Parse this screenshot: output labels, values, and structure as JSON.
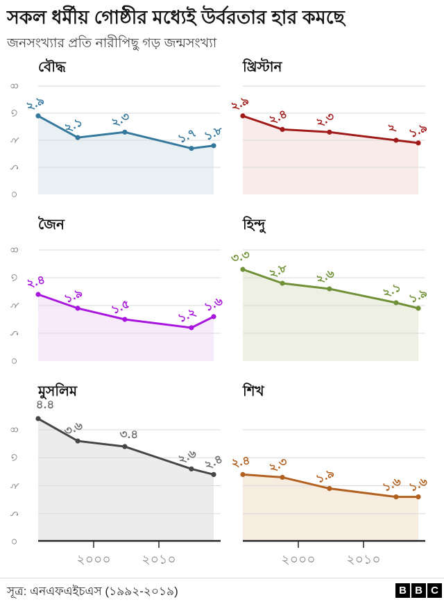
{
  "header": {
    "title": "সকল ধর্মীয় গোষ্ঠীর মধ্যেই উর্বরতার হার কমছে",
    "subtitle": "জনসংখ্যার প্রতি নারীপিছু গড় জন্মসংখ্যা"
  },
  "footer": {
    "source": "সূত্র: এনএফএইচএস (১৯৯২-২০১৯)",
    "bbc_letters": [
      "B",
      "B",
      "C"
    ]
  },
  "axes": {
    "ylim": [
      0,
      5
    ],
    "grid_values": [
      1,
      2,
      3,
      4
    ],
    "y_ticks": [
      {
        "v": 4,
        "label": "৪"
      },
      {
        "v": 3,
        "label": "৩"
      },
      {
        "v": 2,
        "label": "২"
      },
      {
        "v": 1,
        "label": "১"
      },
      {
        "v": 0,
        "label": "০"
      }
    ],
    "x_ticks": [
      {
        "year": 2000,
        "label": "২০০০"
      },
      {
        "year": 2010,
        "label": "২০১০"
      }
    ],
    "x_years": [
      1992,
      1998,
      2005,
      2015,
      2019
    ],
    "legend": "none",
    "grid": "horizontal"
  },
  "chart_data": [
    {
      "type": "area",
      "id": "buddhist",
      "title": "বৌদ্ধ",
      "color": "#35789d",
      "fill": "#e9f0f4",
      "values": [
        2.9,
        2.1,
        2.3,
        1.7,
        1.8
      ],
      "labels": [
        "২.৯",
        "২.১",
        "২.৩",
        "১.৭",
        "১.৮"
      ],
      "row": 0,
      "col": 0,
      "label_rot": [
        -25,
        -25,
        -25,
        -25,
        -25
      ]
    },
    {
      "type": "area",
      "id": "christian",
      "title": "খ্রিস্টান",
      "color": "#a11a1a",
      "fill": "#f8ebe9",
      "values": [
        2.9,
        2.4,
        2.3,
        2.0,
        1.9
      ],
      "labels": [
        "২.৯",
        "২.৪",
        "২.৩",
        "২",
        "১.৯"
      ],
      "row": 0,
      "col": 1,
      "label_rot": [
        -25,
        -25,
        -25,
        -25,
        -25
      ]
    },
    {
      "type": "area",
      "id": "jain",
      "title": "জৈন",
      "color": "#a816dd",
      "fill": "#f7ebfb",
      "values": [
        2.4,
        1.9,
        1.5,
        1.2,
        1.6
      ],
      "labels": [
        "২.৪",
        "১.৯",
        "১.৫",
        "১.২",
        "১.৬"
      ],
      "row": 1,
      "col": 0,
      "label_rot": [
        -15,
        -25,
        -25,
        -25,
        -25
      ]
    },
    {
      "type": "area",
      "id": "hindu",
      "title": "হিন্দু",
      "color": "#6f9036",
      "fill": "#eef0e4",
      "values": [
        3.3,
        2.8,
        2.6,
        2.1,
        1.9
      ],
      "labels": [
        "৩.৩",
        "২.৮",
        "২.৬",
        "২.১",
        "১.৯"
      ],
      "row": 1,
      "col": 1,
      "label_rot": [
        -15,
        -25,
        -25,
        -25,
        -25
      ]
    },
    {
      "type": "area",
      "id": "muslim",
      "title": "মুসলিম",
      "color": "#464646",
      "fill": "#ececec",
      "label_color": "#6e6e6e",
      "values": [
        4.4,
        3.6,
        3.4,
        2.6,
        2.4
      ],
      "labels": [
        "৪.৪",
        "৩.৬",
        "৩.৪",
        "২.৬",
        "২.৪"
      ],
      "row": 2,
      "col": 0,
      "label_rot": [
        0,
        -25,
        0,
        -25,
        -25
      ],
      "label_dx": [
        10,
        -4,
        6,
        -4,
        2
      ],
      "label_dy": [
        -15,
        -13,
        -12,
        -13,
        -13
      ]
    },
    {
      "type": "area",
      "id": "sikh",
      "title": "শিখ",
      "color": "#b2601f",
      "fill": "#f6ecdf",
      "values": [
        2.4,
        2.3,
        1.9,
        1.6,
        1.6
      ],
      "labels": [
        "২.৪",
        "২.৩",
        "১.৯",
        "১.৬",
        "১.৬"
      ],
      "row": 2,
      "col": 1,
      "label_rot": [
        -10,
        -25,
        -25,
        -25,
        -25
      ]
    }
  ]
}
